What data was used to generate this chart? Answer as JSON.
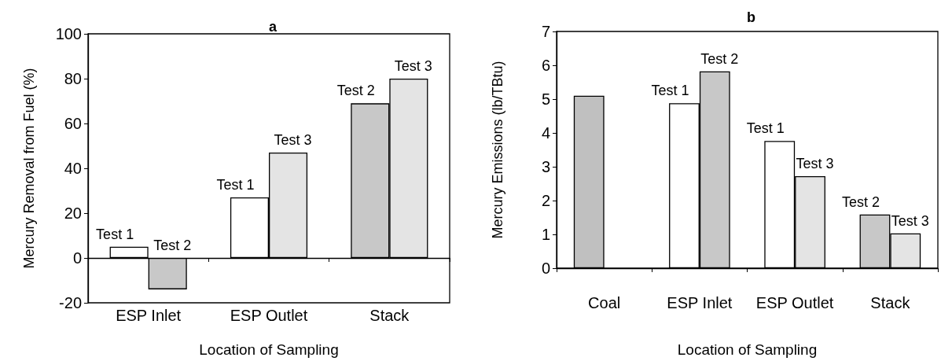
{
  "chart_data": [
    {
      "type": "bar",
      "title": "a",
      "xlabel": "Location of Sampling",
      "ylabel": "Mercury Removal from Fuel (%)",
      "categories": [
        "ESP Inlet",
        "ESP Outlet",
        "Stack"
      ],
      "series": [
        {
          "values": [
            5,
            27,
            69
          ],
          "colors": [
            "#ffffff",
            "#ffffff",
            "#c8c8c8"
          ],
          "value_labels": [
            "Test 1",
            "Test 1",
            "Test 2"
          ]
        },
        {
          "values": [
            -14,
            47,
            80
          ],
          "colors": [
            "#c8c8c8",
            "#e4e4e4",
            "#e4e4e4"
          ],
          "value_labels": [
            "Test 2",
            "Test 3",
            "Test 3"
          ]
        }
      ],
      "ylim": [
        -20,
        100
      ],
      "yticks": [
        -20,
        0,
        20,
        40,
        60,
        80,
        100
      ]
    },
    {
      "type": "bar",
      "title": "b",
      "xlabel": "Location of Sampling",
      "ylabel": "Mercury Emissions (lb/TBtu)",
      "categories": [
        "Coal",
        "ESP Inlet",
        "ESP Outlet",
        "Stack"
      ],
      "series": [
        {
          "values": [
            5.1,
            4.88,
            3.76,
            1.59
          ],
          "colors": [
            "#c0c0c0",
            "#ffffff",
            "#ffffff",
            "#c8c8c8"
          ],
          "value_labels": [
            null,
            "Test 1",
            "Test 1",
            "Test 2"
          ]
        },
        {
          "values": [
            null,
            5.82,
            2.72,
            1.03
          ],
          "colors": [
            null,
            "#c8c8c8",
            "#e4e4e4",
            "#e4e4e4"
          ],
          "value_labels": [
            null,
            "Test 2",
            "Test 3",
            "Test 3"
          ]
        }
      ],
      "ylim": [
        0,
        7
      ],
      "yticks": [
        0,
        1,
        2,
        3,
        4,
        5,
        6,
        7
      ]
    }
  ]
}
